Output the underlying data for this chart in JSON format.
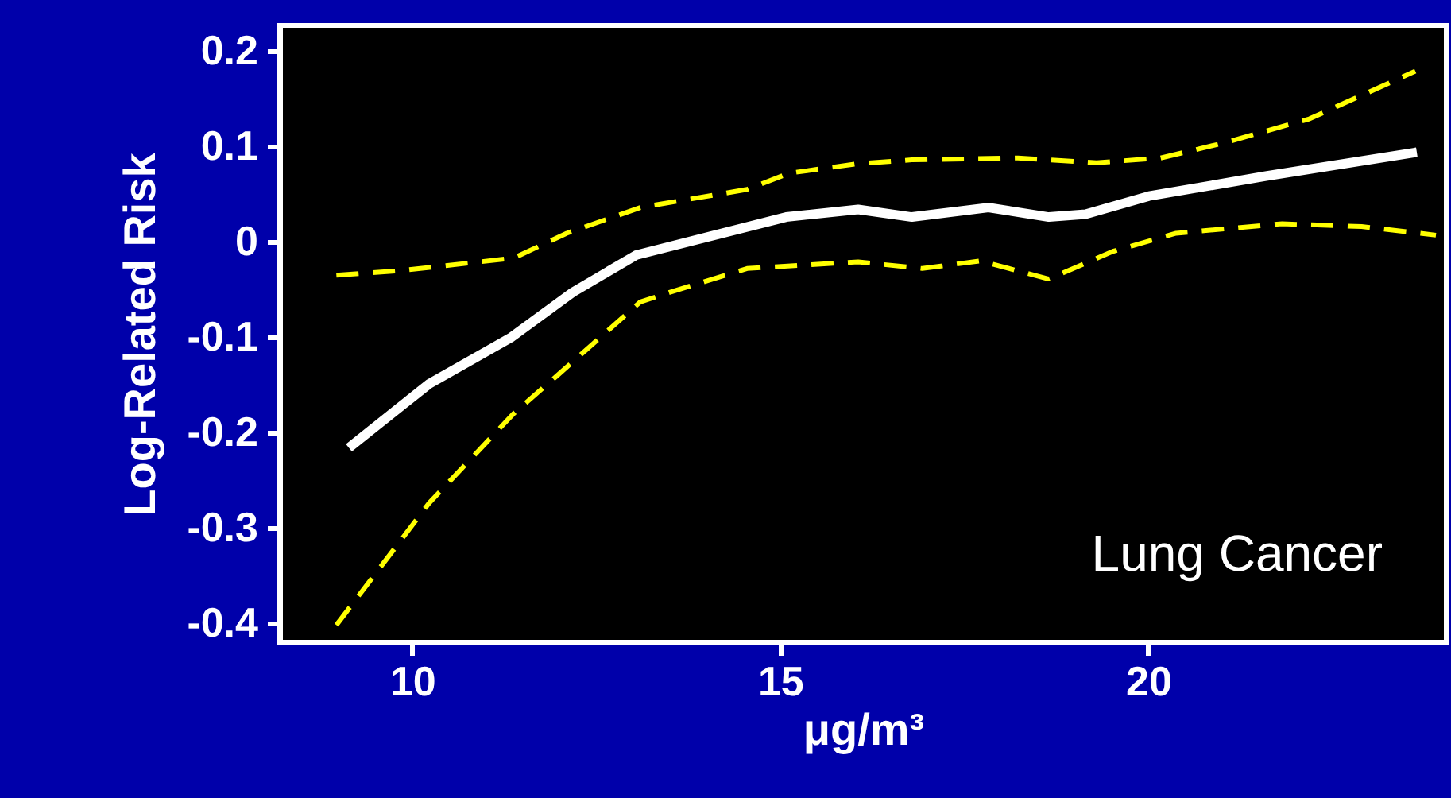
{
  "chart_data": {
    "type": "line",
    "xlabel": "μg/m³",
    "ylabel": "Log-Related Risk",
    "xlim": [
      8.2,
      24.05
    ],
    "ylim": [
      -0.42,
      0.227
    ],
    "xticks": [
      10,
      15,
      20
    ],
    "yticks": [
      0.2,
      0.1,
      0,
      -0.1,
      -0.2,
      -0.3,
      -0.4
    ],
    "grid": false,
    "annotations": [
      "Lung Cancer"
    ],
    "series": [
      {
        "color": "#ffffff",
        "line_style": "solid",
        "x": [
          9.14,
          10.23,
          11.35,
          12.18,
          13.04,
          15.08,
          16.06,
          16.79,
          17.83,
          18.65,
          19.15,
          20.01,
          21.6,
          23.65
        ],
        "values": [
          -0.216,
          -0.149,
          -0.1,
          -0.053,
          -0.014,
          0.026,
          0.034,
          0.026,
          0.036,
          0.026,
          0.029,
          0.048,
          0.069,
          0.094
        ]
      },
      {
        "color": "#ffff00",
        "line_style": "dashed",
        "x": [
          8.97,
          9.87,
          11.38,
          12.1,
          13.1,
          14.55,
          15.12,
          16.06,
          16.79,
          18.23,
          19.3,
          20.17,
          21.04,
          22.19,
          23.63
        ],
        "values": [
          -0.035,
          -0.03,
          -0.017,
          0.009,
          0.036,
          0.055,
          0.072,
          0.082,
          0.086,
          0.088,
          0.083,
          0.088,
          0.104,
          0.129,
          0.179
        ]
      },
      {
        "color": "#ffff00",
        "line_style": "dashed",
        "x": [
          8.97,
          10.23,
          11.38,
          11.96,
          13.1,
          13.54,
          14.55,
          16.06,
          16.93,
          17.72,
          18.65,
          19.52,
          20.38,
          21.82,
          22.9,
          23.91
        ],
        "values": [
          -0.402,
          -0.274,
          -0.18,
          -0.141,
          -0.063,
          -0.052,
          -0.028,
          -0.021,
          -0.028,
          -0.02,
          -0.039,
          -0.01,
          0.009,
          0.019,
          0.016,
          0.007
        ]
      }
    ]
  }
}
